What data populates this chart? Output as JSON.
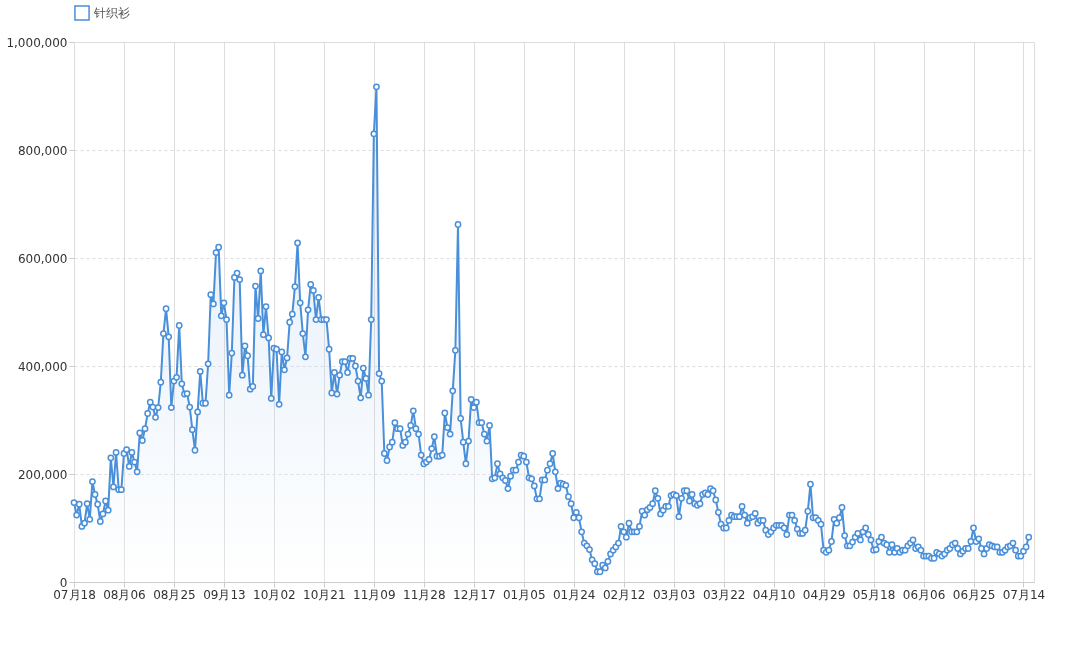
{
  "chart_data": {
    "type": "area",
    "marker": "circle",
    "grid": true,
    "legend": "top left",
    "ylim": [
      0,
      1000000
    ],
    "yticks": [
      {
        "value": 0,
        "label": "0"
      },
      {
        "value": 200000,
        "label": "200,000"
      },
      {
        "value": 400000,
        "label": "400,000"
      },
      {
        "value": 600000,
        "label": "600,000"
      },
      {
        "value": 800000,
        "label": "800,000"
      },
      {
        "value": 1000000,
        "label": "1,000,000"
      }
    ],
    "categories": [
      "07月18",
      null,
      null,
      null,
      null,
      null,
      null,
      null,
      null,
      null,
      null,
      null,
      null,
      null,
      null,
      null,
      null,
      null,
      null,
      "08月06",
      null,
      null,
      null,
      null,
      null,
      null,
      null,
      null,
      null,
      null,
      null,
      null,
      null,
      null,
      null,
      null,
      null,
      null,
      "08月25",
      null,
      null,
      null,
      null,
      null,
      null,
      null,
      null,
      null,
      null,
      null,
      null,
      null,
      null,
      null,
      null,
      null,
      null,
      "09月13",
      null,
      null,
      null,
      null,
      null,
      null,
      null,
      null,
      null,
      null,
      null,
      null,
      null,
      null,
      null,
      null,
      null,
      null,
      "10月02",
      null,
      null,
      null,
      null,
      null,
      null,
      null,
      null,
      null,
      null,
      null,
      null,
      null,
      null,
      null,
      null,
      null,
      null,
      "10月21",
      null,
      null,
      null,
      null,
      null,
      null,
      null,
      null,
      null,
      null,
      null,
      null,
      null,
      null,
      null,
      null,
      null,
      null,
      "11月09",
      null,
      null,
      null,
      null,
      null,
      null,
      null,
      null,
      null,
      null,
      null,
      null,
      null,
      null,
      null,
      null,
      null,
      null,
      "11月28",
      null,
      null,
      null,
      null,
      null,
      null,
      null,
      null,
      null,
      null,
      null,
      null,
      null,
      null,
      null,
      null,
      null,
      null,
      "12月17",
      null,
      null,
      null,
      null,
      null,
      null,
      null,
      null,
      null,
      null,
      null,
      null,
      null,
      null,
      null,
      null,
      null,
      null,
      "01月05",
      null,
      null,
      null,
      null,
      null,
      null,
      null,
      null,
      null,
      null,
      null,
      null,
      null,
      null,
      null,
      null,
      null,
      null,
      "01月24",
      null,
      null,
      null,
      null,
      null,
      null,
      null,
      null,
      null,
      null,
      null,
      null,
      null,
      null,
      null,
      null,
      null,
      null,
      "02月12",
      null,
      null,
      null,
      null,
      null,
      null,
      null,
      null,
      null,
      null,
      null,
      null,
      null,
      null,
      null,
      null,
      null,
      null,
      "03月03",
      null,
      null,
      null,
      null,
      null,
      null,
      null,
      null,
      null,
      null,
      null,
      null,
      null,
      null,
      null,
      null,
      null,
      null,
      "03月22",
      null,
      null,
      null,
      null,
      null,
      null,
      null,
      null,
      null,
      null,
      null,
      null,
      null,
      null,
      null,
      null,
      null,
      null,
      "04月10",
      null,
      null,
      null,
      null,
      null,
      null,
      null,
      null,
      null,
      null,
      null,
      null,
      null,
      null,
      null,
      null,
      null,
      null,
      "04月29",
      null,
      null,
      null,
      null,
      null,
      null,
      null,
      null,
      null,
      null,
      null,
      null,
      null,
      null,
      null,
      null,
      null,
      null,
      "05月18",
      null,
      null,
      null,
      null,
      null,
      null,
      null,
      null,
      null,
      null,
      null,
      null,
      null,
      null,
      null,
      null,
      null,
      null,
      "06月06",
      null,
      null,
      null,
      null,
      null,
      null,
      null,
      null,
      null,
      null,
      null,
      null,
      null,
      null,
      null,
      null,
      null,
      null,
      "06月25",
      null,
      null,
      null,
      null,
      null,
      null,
      null,
      null,
      null,
      null,
      null,
      null,
      null,
      null,
      null,
      null,
      null,
      null,
      "07月14",
      null,
      null
    ],
    "series": [
      {
        "name": "针织衫",
        "color": "#4a8fd9",
        "values": [
          147000,
          124000,
          144000,
          103000,
          109000,
          145000,
          116000,
          186000,
          162000,
          144000,
          112000,
          126000,
          150000,
          133000,
          230000,
          176000,
          240000,
          171000,
          171000,
          238000,
          245000,
          214000,
          240000,
          222000,
          204000,
          276000,
          262000,
          284000,
          312000,
          333000,
          324000,
          305000,
          323000,
          370000,
          460000,
          506000,
          454000,
          323000,
          372000,
          379000,
          475000,
          367000,
          348000,
          349000,
          324000,
          282000,
          244000,
          315000,
          390000,
          331000,
          331000,
          404000,
          532000,
          515000,
          610000,
          620000,
          493000,
          517000,
          486000,
          346000,
          424000,
          564000,
          572000,
          560000,
          383000,
          437000,
          419000,
          357000,
          362000,
          548000,
          488000,
          576000,
          458000,
          510000,
          452000,
          340000,
          433000,
          431000,
          329000,
          426000,
          393000,
          415000,
          481000,
          496000,
          547000,
          628000,
          517000,
          460000,
          417000,
          504000,
          551000,
          540000,
          486000,
          527000,
          486000,
          486000,
          486000,
          431000,
          350000,
          388000,
          348000,
          383000,
          408000,
          408000,
          388000,
          414000,
          414000,
          400000,
          372000,
          341000,
          396000,
          377000,
          346000,
          486000,
          830000,
          917000,
          386000,
          372000,
          238000,
          225000,
          250000,
          259000,
          295000,
          284000,
          284000,
          253000,
          259000,
          274000,
          290000,
          317000,
          284000,
          274000,
          235000,
          219000,
          222000,
          227000,
          247000,
          269000,
          233000,
          233000,
          235000,
          313000,
          286000,
          274000,
          354000,
          429000,
          662000,
          303000,
          259000,
          219000,
          261000,
          338000,
          323000,
          333000,
          295000,
          295000,
          274000,
          261000,
          290000,
          191000,
          193000,
          219000,
          200000,
          193000,
          188000,
          173000,
          196000,
          207000,
          207000,
          222000,
          235000,
          233000,
          222000,
          193000,
          191000,
          178000,
          154000,
          154000,
          189000,
          189000,
          207000,
          219000,
          238000,
          204000,
          173000,
          183000,
          181000,
          179000,
          158000,
          145000,
          119000,
          129000,
          119000,
          93000,
          72000,
          67000,
          60000,
          41000,
          34000,
          19000,
          19000,
          31000,
          26000,
          38000,
          52000,
          59000,
          65000,
          72000,
          103000,
          93000,
          83000,
          109000,
          93000,
          93000,
          93000,
          103000,
          131000,
          124000,
          134000,
          138000,
          145000,
          169000,
          155000,
          126000,
          133000,
          140000,
          140000,
          160000,
          162000,
          160000,
          121000,
          155000,
          169000,
          169000,
          150000,
          162000,
          145000,
          142000,
          145000,
          162000,
          165000,
          162000,
          173000,
          169000,
          152000,
          129000,
          107000,
          100000,
          100000,
          114000,
          124000,
          121000,
          121000,
          121000,
          140000,
          124000,
          109000,
          119000,
          121000,
          127000,
          109000,
          114000,
          114000,
          96000,
          88000,
          93000,
          100000,
          105000,
          105000,
          105000,
          100000,
          88000,
          124000,
          124000,
          114000,
          98000,
          90000,
          90000,
          96000,
          131000,
          181000,
          119000,
          119000,
          114000,
          107000,
          59000,
          55000,
          59000,
          75000,
          116000,
          109000,
          119000,
          138000,
          86000,
          67000,
          67000,
          74000,
          83000,
          90000,
          78000,
          93000,
          100000,
          88000,
          78000,
          59000,
          60000,
          75000,
          83000,
          72000,
          69000,
          55000,
          69000,
          55000,
          62000,
          55000,
          59000,
          59000,
          67000,
          72000,
          78000,
          62000,
          65000,
          59000,
          48000,
          48000,
          48000,
          44000,
          44000,
          55000,
          52000,
          48000,
          52000,
          59000,
          62000,
          69000,
          72000,
          62000,
          52000,
          57000,
          62000,
          62000,
          75000,
          100000,
          75000,
          80000,
          62000,
          52000,
          62000,
          69000,
          67000,
          65000,
          65000,
          55000,
          55000,
          59000,
          65000,
          67000,
          72000,
          59000,
          48000,
          48000,
          57000,
          65000,
          83000
        ]
      }
    ]
  }
}
